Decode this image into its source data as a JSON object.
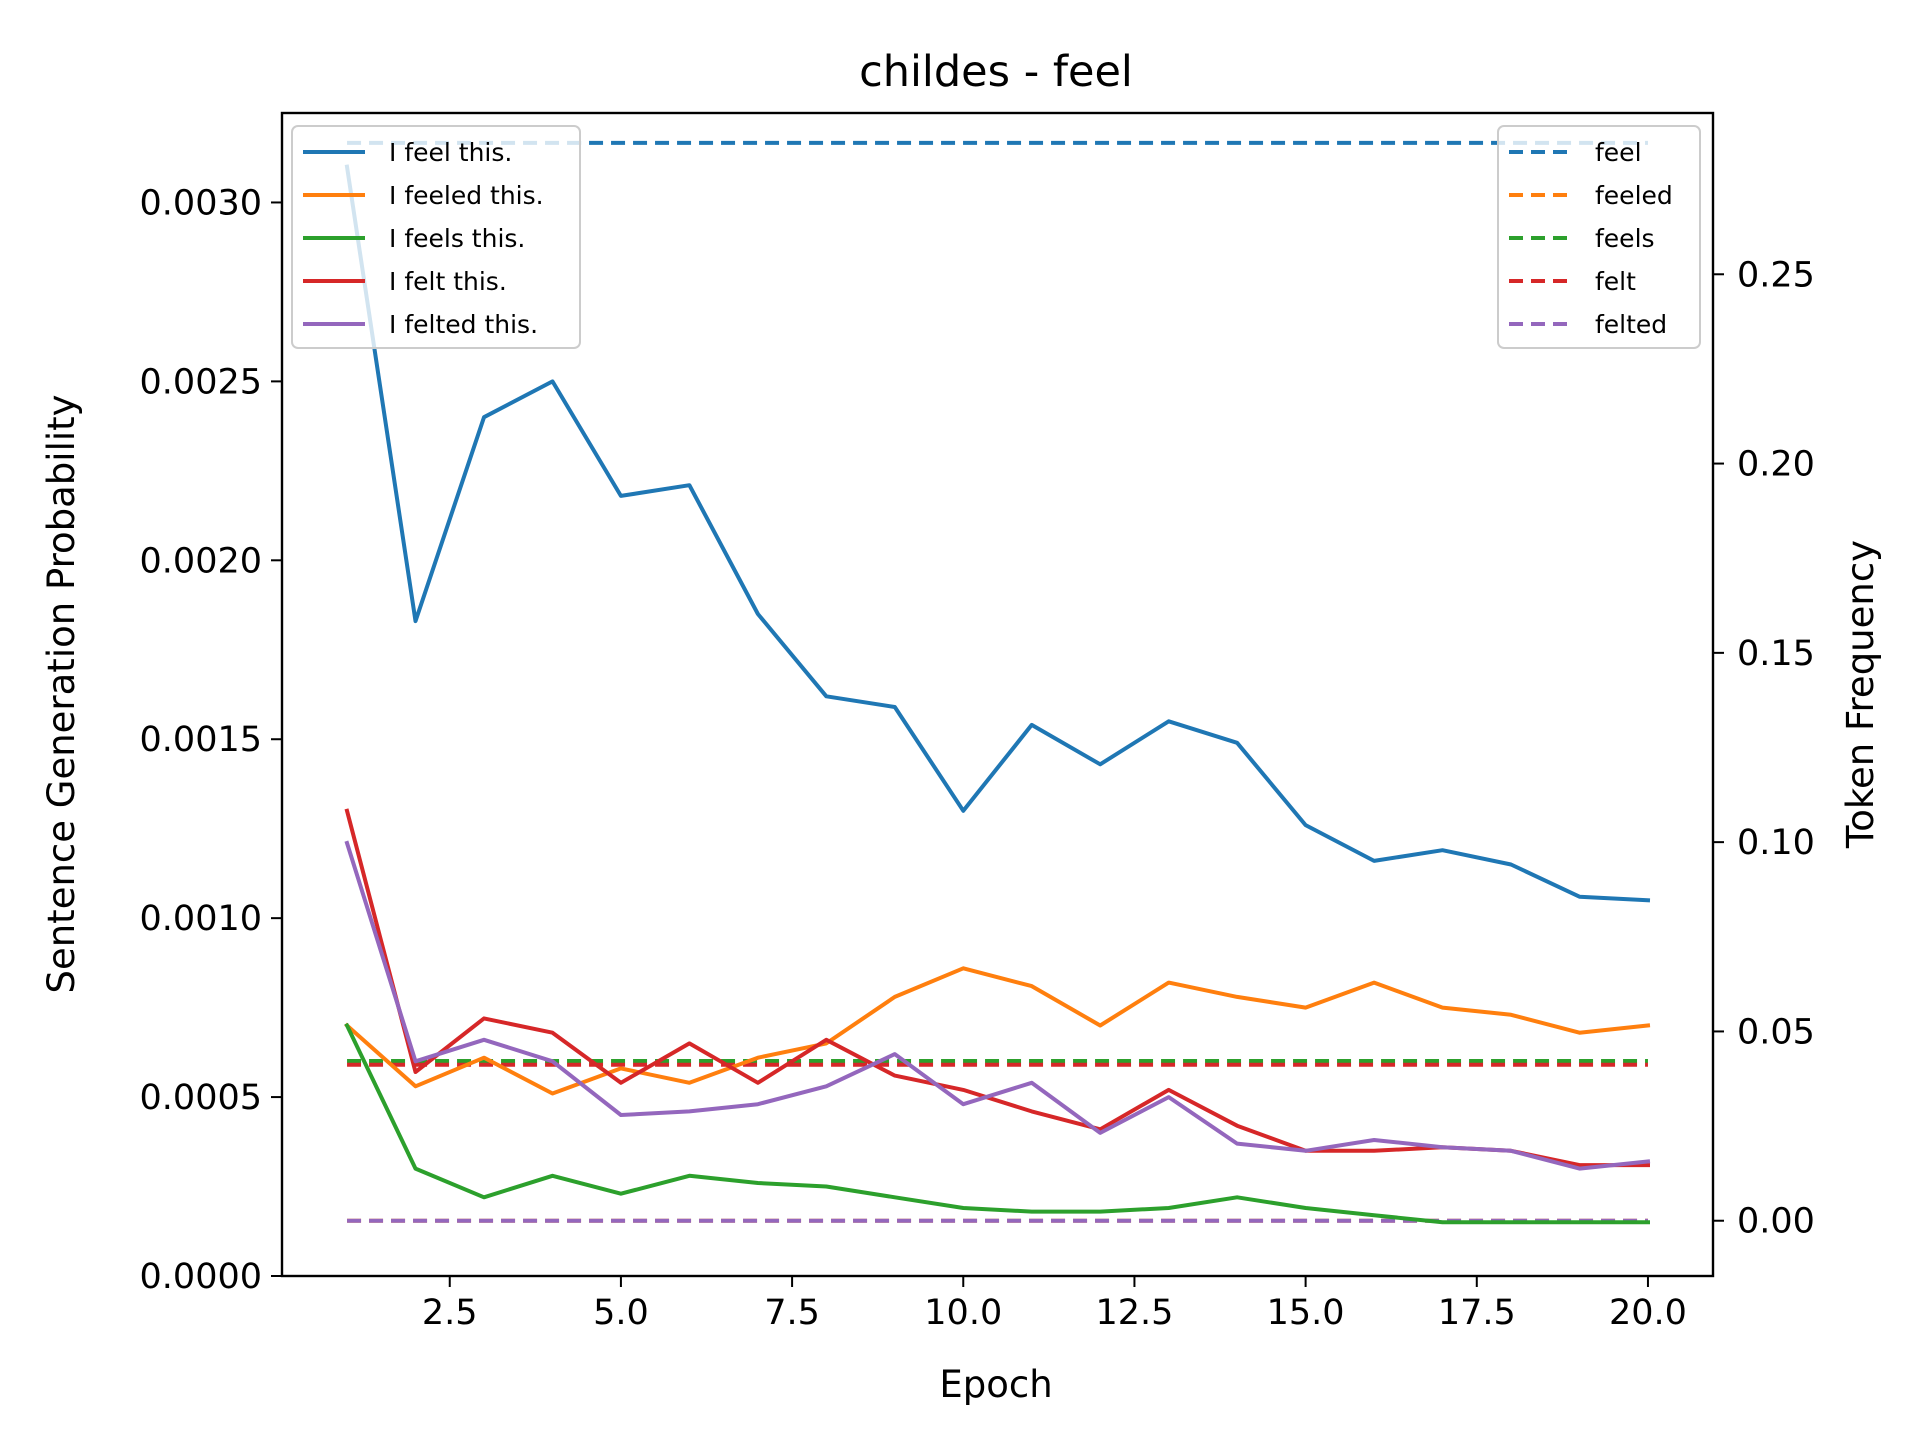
{
  "chart_data": {
    "type": "line",
    "title": "childes - feel",
    "xlabel": "Epoch",
    "ylabel": "Sentence Generation Probability",
    "ylabel_right": "Token Frequency",
    "xlim": [
      0.05,
      20.95
    ],
    "ylim": [
      0,
      0.00325
    ],
    "ylim_right": [
      -0.0146,
      0.2926
    ],
    "xticks": [
      2.5,
      5.0,
      7.5,
      10.0,
      12.5,
      15.0,
      17.5,
      20.0
    ],
    "xtick_labels": [
      "2.5",
      "5.0",
      "7.5",
      "10.0",
      "12.5",
      "15.0",
      "17.5",
      "20.0"
    ],
    "yticks": [
      0,
      0.0005,
      0.001,
      0.0015,
      0.002,
      0.0025,
      0.003
    ],
    "ytick_labels": [
      "0.0000",
      "0.0005",
      "0.0010",
      "0.0015",
      "0.0020",
      "0.0025",
      "0.0030"
    ],
    "yticks_right": [
      0,
      0.05,
      0.1,
      0.15,
      0.2,
      0.25
    ],
    "ytick_labels_right": [
      "0.00",
      "0.05",
      "0.10",
      "0.15",
      "0.20",
      "0.25"
    ],
    "grid": false,
    "legend_left_placement": "top-left",
    "legend_right_placement": "top-right",
    "x": [
      1,
      2,
      3,
      4,
      5,
      6,
      7,
      8,
      9,
      10,
      11,
      12,
      13,
      14,
      15,
      16,
      17,
      18,
      19,
      20
    ],
    "series": [
      {
        "name": "I feel this.",
        "color": "#1f77b4",
        "values": [
          0.0031,
          0.00183,
          0.0024,
          0.0025,
          0.00218,
          0.00221,
          0.00185,
          0.00162,
          0.00159,
          0.0013,
          0.00154,
          0.00143,
          0.00155,
          0.00149,
          0.00126,
          0.00116,
          0.00119,
          0.00115,
          0.00106,
          0.00105
        ]
      },
      {
        "name": "I feeled this.",
        "color": "#ff7f0e",
        "values": [
          0.0007,
          0.00053,
          0.00061,
          0.00051,
          0.00058,
          0.00054,
          0.00061,
          0.00065,
          0.00078,
          0.00086,
          0.00081,
          0.0007,
          0.00082,
          0.00078,
          0.00075,
          0.00082,
          0.00075,
          0.00073,
          0.00068,
          0.0007
        ]
      },
      {
        "name": "I feels this.",
        "color": "#2ca02c",
        "values": [
          0.0007,
          0.0003,
          0.00022,
          0.00028,
          0.00023,
          0.00028,
          0.00026,
          0.00025,
          0.00022,
          0.00019,
          0.00018,
          0.00018,
          0.00019,
          0.00022,
          0.00019,
          0.00017,
          0.00015,
          0.00015,
          0.00015,
          0.00015
        ]
      },
      {
        "name": "I felt this.",
        "color": "#d62728",
        "values": [
          0.0013,
          0.00057,
          0.00072,
          0.00068,
          0.00054,
          0.00065,
          0.00054,
          0.00066,
          0.00056,
          0.00052,
          0.00046,
          0.00041,
          0.00052,
          0.00042,
          0.00035,
          0.00035,
          0.00036,
          0.00035,
          0.00031,
          0.00031
        ]
      },
      {
        "name": "I felted this.",
        "color": "#9467bd",
        "values": [
          0.00121,
          0.0006,
          0.00066,
          0.0006,
          0.00045,
          0.00046,
          0.00048,
          0.00053,
          0.00062,
          0.00048,
          0.00054,
          0.0004,
          0.0005,
          0.00037,
          0.00035,
          0.00038,
          0.00036,
          0.00035,
          0.0003,
          0.00032
        ]
      }
    ],
    "series_right": [
      {
        "name": "feel",
        "color": "#1f77b4",
        "value": 0.2847
      },
      {
        "name": "feeled",
        "color": "#ff7f0e",
        "value": 0.0
      },
      {
        "name": "feels",
        "color": "#2ca02c",
        "value": 0.0422
      },
      {
        "name": "felt",
        "color": "#d62728",
        "value": 0.0412
      },
      {
        "name": "felted",
        "color": "#9467bd",
        "value": 0.0
      }
    ]
  }
}
